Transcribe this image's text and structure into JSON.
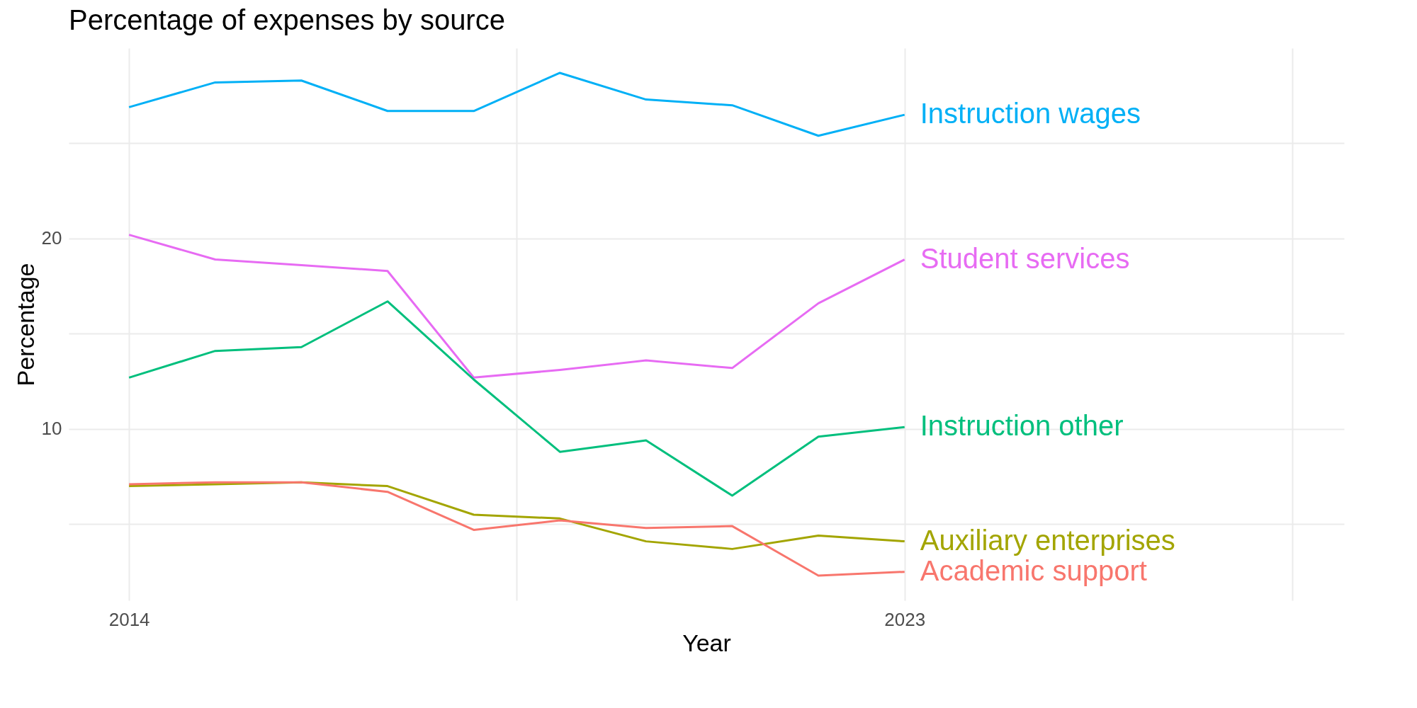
{
  "chart_data": {
    "type": "line",
    "title": "Percentage of expenses by source",
    "xlabel": "Year",
    "ylabel": "Percentage",
    "x": [
      2014,
      2015,
      2016,
      2017,
      2018,
      2019,
      2020,
      2021,
      2022,
      2023
    ],
    "series": [
      {
        "name": "Instruction wages",
        "color": "#00b0f6",
        "values": [
          26.9,
          28.2,
          28.3,
          26.7,
          26.7,
          28.7,
          27.3,
          27.0,
          25.4,
          26.5
        ]
      },
      {
        "name": "Student services",
        "color": "#e76bf3",
        "values": [
          20.2,
          18.9,
          18.6,
          18.3,
          12.7,
          13.1,
          13.6,
          13.2,
          16.6,
          18.9
        ]
      },
      {
        "name": "Instruction other",
        "color": "#00bf7d",
        "values": [
          12.7,
          14.1,
          14.3,
          16.7,
          12.6,
          8.8,
          9.4,
          6.5,
          9.6,
          10.1
        ]
      },
      {
        "name": "Auxiliary enterprises",
        "color": "#a3a500",
        "values": [
          7.0,
          7.1,
          7.2,
          7.0,
          5.5,
          5.3,
          4.1,
          3.7,
          4.4,
          4.1
        ]
      },
      {
        "name": "Academic support",
        "color": "#f8766d",
        "values": [
          7.1,
          7.2,
          7.2,
          6.7,
          4.7,
          5.2,
          4.8,
          4.9,
          2.3,
          2.5
        ]
      }
    ],
    "xlim": [
      2013.3,
      2028.1
    ],
    "xticks": [
      2014,
      {
        "value": 2018.5,
        "label": null
      },
      2023,
      {
        "value": 2027.5,
        "label": null
      }
    ],
    "ylim": [
      1,
      30
    ],
    "yticks": [
      {
        "value": 5,
        "label": null
      },
      10,
      {
        "value": 15,
        "label": null
      },
      20,
      {
        "value": 25,
        "label": null
      }
    ],
    "grid": true,
    "legend": false,
    "marker": "none",
    "line_style": "solid"
  }
}
